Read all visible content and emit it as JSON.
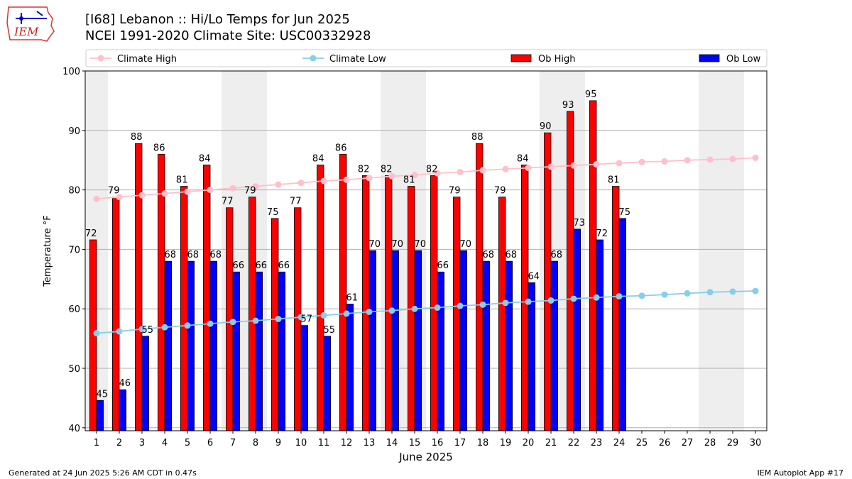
{
  "header": {
    "title_line1": "[I68] Lebanon :: Hi/Lo Temps for Jun 2025",
    "title_line2": "NCEI 1991-2020 Climate Site: USC00332928",
    "logo_text": "IEM"
  },
  "footer": {
    "generated": "Generated at 24 Jun 2025 5:26 AM CDT in 0.47s",
    "app": "IEM Autoplot App #17"
  },
  "colors": {
    "ob_high": "#ff0000",
    "ob_low": "#0000ff",
    "climate_high": "#ffc0cb",
    "climate_low": "#87ceeb",
    "weekend_shade": "#eeeeee",
    "grid": "#b0b0b0"
  },
  "chart_data": {
    "type": "bar",
    "xlabel": "June 2025",
    "ylabel": "Temperature °F",
    "ylim": [
      39.5,
      100
    ],
    "yticks": [
      40,
      50,
      60,
      70,
      80,
      90,
      100
    ],
    "grid": "horizontal",
    "legend": {
      "placement": "top",
      "entries": [
        "Climate High",
        "Climate Low",
        "Ob High",
        "Ob Low"
      ]
    },
    "shaded_days": [
      1,
      7,
      8,
      14,
      15,
      21,
      22,
      28,
      29
    ],
    "categories": [
      "1",
      "2",
      "3",
      "4",
      "5",
      "6",
      "7",
      "8",
      "9",
      "10",
      "11",
      "12",
      "13",
      "14",
      "15",
      "16",
      "17",
      "18",
      "19",
      "20",
      "21",
      "22",
      "23",
      "24",
      "25",
      "26",
      "27",
      "28",
      "29",
      "30"
    ],
    "series": [
      {
        "name": "Ob High",
        "kind": "bar",
        "values": [
          71.6,
          78.8,
          87.8,
          86.0,
          80.6,
          84.2,
          77.0,
          78.8,
          75.2,
          77.0,
          84.2,
          86.0,
          82.4,
          82.4,
          80.6,
          82.4,
          78.8,
          87.8,
          78.8,
          84.2,
          89.6,
          93.2,
          95.0,
          80.6,
          null,
          null,
          null,
          null,
          null,
          null
        ],
        "labels": [
          "72",
          "79",
          "88",
          "86",
          "81",
          "84",
          "77",
          "79",
          "75",
          "77",
          "84",
          "86",
          "82",
          "82",
          "81",
          "82",
          "79",
          "88",
          "79",
          "84",
          "90",
          "93",
          "95",
          "81",
          "",
          "",
          "",
          "",
          "",
          ""
        ]
      },
      {
        "name": "Ob Low",
        "kind": "bar",
        "values": [
          44.6,
          46.4,
          55.4,
          68.0,
          68.0,
          68.0,
          66.2,
          66.2,
          66.2,
          57.2,
          55.4,
          60.8,
          69.8,
          69.8,
          69.8,
          66.2,
          69.8,
          68.0,
          68.0,
          64.4,
          68.0,
          73.4,
          71.6,
          75.2,
          null,
          null,
          null,
          null,
          null,
          null
        ],
        "labels": [
          "45",
          "46",
          "55",
          "68",
          "68",
          "68",
          "66",
          "66",
          "66",
          "57",
          "55",
          "61",
          "70",
          "70",
          "70",
          "66",
          "70",
          "68",
          "68",
          "64",
          "68",
          "73",
          "72",
          "75",
          "",
          "",
          "",
          "",
          "",
          ""
        ]
      },
      {
        "name": "Climate High",
        "kind": "line",
        "values": [
          78.5,
          78.8,
          79.1,
          79.4,
          79.7,
          80.0,
          80.3,
          80.6,
          80.9,
          81.2,
          81.5,
          81.7,
          82.0,
          82.3,
          82.5,
          82.8,
          83.0,
          83.3,
          83.5,
          83.7,
          83.9,
          84.1,
          84.3,
          84.5,
          84.7,
          84.8,
          85.0,
          85.1,
          85.2,
          85.4
        ]
      },
      {
        "name": "Climate Low",
        "kind": "line",
        "values": [
          55.9,
          56.2,
          56.6,
          56.9,
          57.2,
          57.5,
          57.8,
          58.0,
          58.3,
          58.6,
          58.9,
          59.2,
          59.5,
          59.7,
          60.0,
          60.2,
          60.5,
          60.7,
          61.0,
          61.2,
          61.4,
          61.7,
          61.9,
          62.1,
          62.2,
          62.4,
          62.6,
          62.8,
          62.9,
          63.0
        ]
      }
    ]
  }
}
